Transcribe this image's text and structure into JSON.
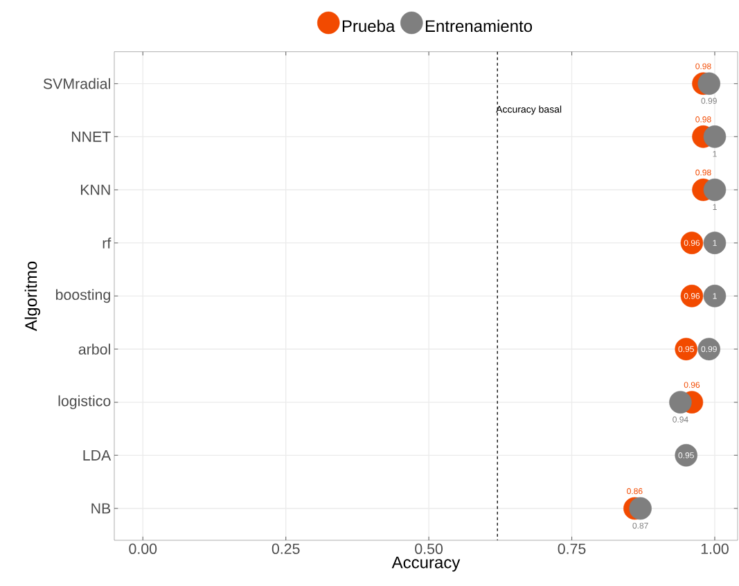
{
  "chart_data": {
    "type": "scatter",
    "orientation": "horizontal",
    "xlabel": "Accuracy",
    "ylabel": "Algoritmo",
    "categories": [
      "SVMradial",
      "NNET",
      "KNN",
      "rf",
      "boosting",
      "arbol",
      "logistico",
      "LDA",
      "NB"
    ],
    "series": [
      {
        "name": "Prueba",
        "color": "#f24a00",
        "values": [
          0.98,
          0.98,
          0.98,
          0.96,
          0.96,
          0.95,
          0.96,
          null,
          0.86
        ],
        "value_labels": [
          "0.98",
          "0.98",
          "0.98",
          "0.96",
          "0.96",
          "0.95",
          "0.96",
          null,
          "0.86"
        ]
      },
      {
        "name": "Entrenamiento",
        "color": "#7f7f7f",
        "values": [
          0.99,
          1,
          1,
          1,
          1,
          0.99,
          0.94,
          0.95,
          0.87
        ],
        "value_labels": [
          "0.99",
          "1",
          "1",
          "1",
          "1",
          "0.99",
          "0.94",
          "0.95",
          "0.87"
        ]
      }
    ],
    "xlim": [
      -0.05,
      1.04
    ],
    "xticks": [
      {
        "value": 0,
        "label": "0.00"
      },
      {
        "value": 0.25,
        "label": "0.25"
      },
      {
        "value": 0.5,
        "label": "0.50"
      },
      {
        "value": 0.75,
        "label": "0.75"
      },
      {
        "value": 1,
        "label": "1.00"
      }
    ],
    "ref_lines": [
      {
        "axis": "x",
        "value": 0.62,
        "label": "Accuracy basal",
        "line_style": "dashed",
        "color": "#000000"
      }
    ],
    "grid": true,
    "legend": "top"
  }
}
